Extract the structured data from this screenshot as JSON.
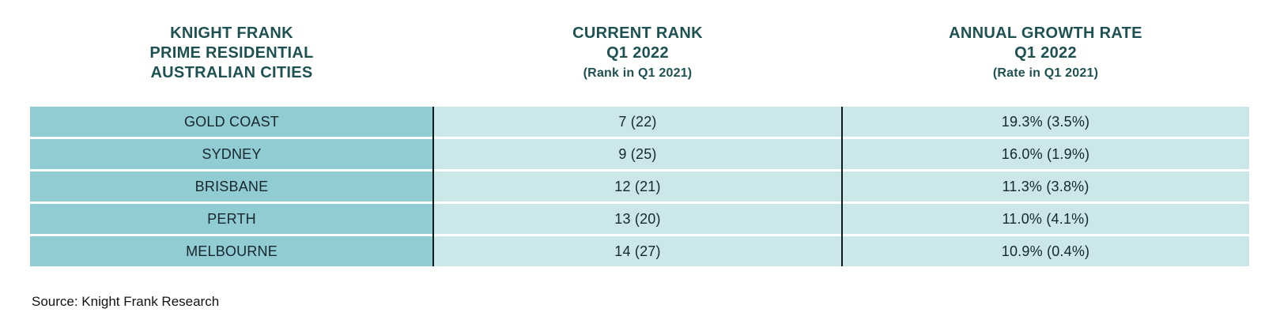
{
  "chart_data": {
    "type": "table",
    "title": "Knight Frank Prime Residential Australian Cities",
    "columns": [
      {
        "title_lines": [
          "KNIGHT FRANK",
          "PRIME RESIDENTIAL",
          "AUSTRALIAN CITIES"
        ],
        "subtitle": ""
      },
      {
        "title_lines": [
          "CURRENT RANK",
          "Q1 2022"
        ],
        "subtitle": "(Rank in Q1 2021)"
      },
      {
        "title_lines": [
          "ANNUAL GROWTH RATE",
          "Q1 2022"
        ],
        "subtitle": "(Rate in Q1 2021)"
      }
    ],
    "rows": [
      {
        "city": "GOLD COAST",
        "rank": "7 (22)",
        "growth": "19.3% (3.5%)"
      },
      {
        "city": "SYDNEY",
        "rank": "9 (25)",
        "growth": "16.0% (1.9%)"
      },
      {
        "city": "BRISBANE",
        "rank": "12 (21)",
        "growth": "11.3% (3.8%)"
      },
      {
        "city": "PERTH",
        "rank": "13 (20)",
        "growth": "11.0% (4.1%)"
      },
      {
        "city": "MELBOURNE",
        "rank": "14 (27)",
        "growth": "10.9% (0.4%)"
      }
    ],
    "numeric": {
      "cities": [
        "GOLD COAST",
        "SYDNEY",
        "BRISBANE",
        "PERTH",
        "MELBOURNE"
      ],
      "current_rank_q1_2022": [
        7,
        9,
        12,
        13,
        14
      ],
      "rank_q1_2021": [
        22,
        25,
        21,
        20,
        27
      ],
      "annual_growth_rate_q1_2022_pct": [
        19.3,
        16.0,
        11.3,
        11.0,
        10.9
      ],
      "rate_q1_2021_pct": [
        3.5,
        1.9,
        3.8,
        4.1,
        0.4
      ]
    },
    "source": "Source: Knight Frank Research",
    "colors": {
      "header_text": "#1e5252",
      "city_cell_bg": "#92ccd3",
      "value_cell_bg": "#cbe7ea",
      "divider": "#0e1b1d",
      "cell_text": "#16272c",
      "background": "#ffffff"
    }
  }
}
